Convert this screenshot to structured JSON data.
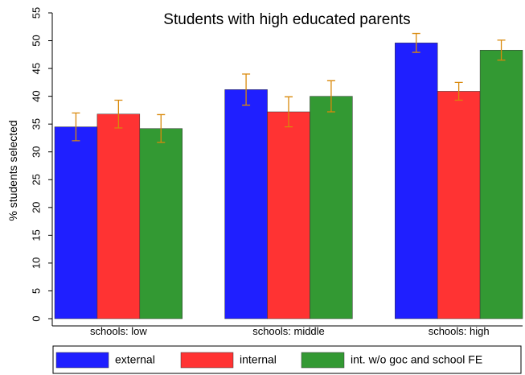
{
  "chart_data": {
    "type": "bar",
    "title": "Students with high educated parents",
    "y_label": "% students selected",
    "categories": [
      "schools: low",
      "schools: middle",
      "schools: high"
    ],
    "series": [
      {
        "name": "external",
        "color": "#1f1fff",
        "values": [
          34.5,
          41.2,
          49.6
        ],
        "errors": [
          2.5,
          2.8,
          1.7
        ]
      },
      {
        "name": "internal",
        "color": "#ff3333",
        "values": [
          36.8,
          37.2,
          40.9
        ],
        "errors": [
          2.5,
          2.7,
          1.6
        ]
      },
      {
        "name": "int. w/o goc and school FE",
        "color": "#339933",
        "values": [
          34.2,
          40.0,
          48.3
        ],
        "errors": [
          2.5,
          2.8,
          1.8
        ]
      }
    ],
    "error_color": "#d9890b",
    "ylim": [
      0,
      55
    ],
    "yticks": [
      0,
      5,
      10,
      15,
      20,
      25,
      30,
      35,
      40,
      45,
      50,
      55
    ]
  }
}
